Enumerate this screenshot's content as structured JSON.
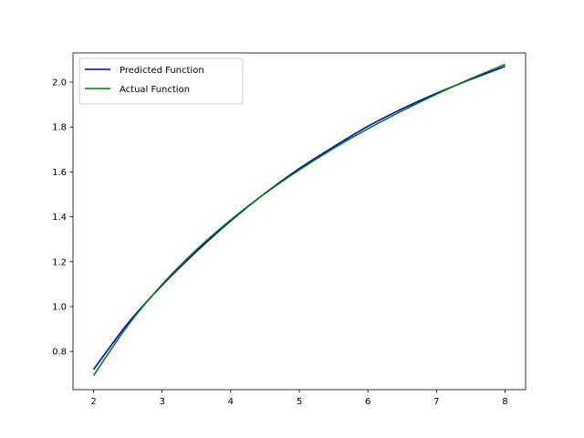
{
  "chart_data": {
    "type": "line",
    "title": "",
    "xlabel": "",
    "ylabel": "",
    "xlim": [
      1.7,
      8.3
    ],
    "ylim": [
      0.63,
      2.13
    ],
    "x_ticks": [
      2,
      3,
      4,
      5,
      6,
      7,
      8
    ],
    "x_tick_labels": [
      "2",
      "3",
      "4",
      "5",
      "6",
      "7",
      "8"
    ],
    "y_ticks": [
      0.8,
      1.0,
      1.2,
      1.4,
      1.6,
      1.8,
      2.0
    ],
    "y_tick_labels": [
      "0.8",
      "1.0",
      "1.2",
      "1.4",
      "1.6",
      "1.8",
      "2.0"
    ],
    "grid": false,
    "legend": {
      "placement": "top-left",
      "entries": [
        "Predicted Function",
        "Actual Function"
      ]
    },
    "series": [
      {
        "name": "Predicted Function",
        "color": "#0000cc",
        "x": [
          2.0,
          2.5,
          3.0,
          3.5,
          4.0,
          4.5,
          5.0,
          5.5,
          6.0,
          6.5,
          7.0,
          7.5,
          8.0
        ],
        "y": [
          0.72,
          0.925,
          1.095,
          1.245,
          1.382,
          1.505,
          1.615,
          1.712,
          1.803,
          1.881,
          1.95,
          2.012,
          2.07
        ]
      },
      {
        "name": "Actual Function",
        "color": "#008000",
        "x": [
          2.0,
          2.5,
          3.0,
          3.5,
          4.0,
          4.5,
          5.0,
          5.5,
          6.0,
          6.5,
          7.0,
          7.5,
          8.0
        ],
        "y": [
          0.693,
          0.916,
          1.099,
          1.253,
          1.386,
          1.504,
          1.609,
          1.705,
          1.792,
          1.872,
          1.946,
          2.015,
          2.079
        ]
      }
    ]
  }
}
